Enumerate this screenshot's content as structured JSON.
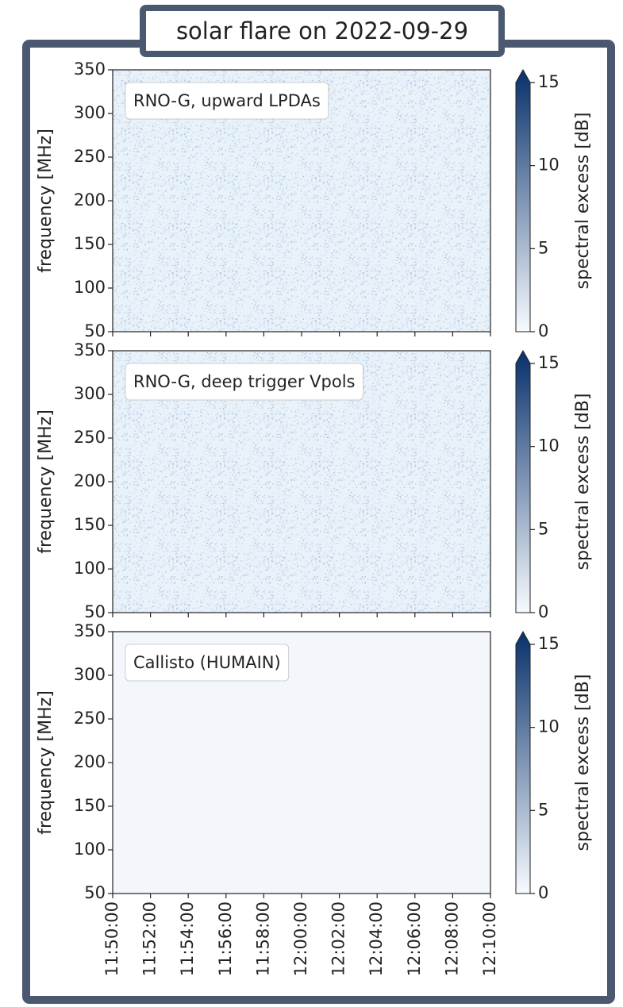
{
  "title": "solar flare on 2022-09-29",
  "colormap": [
    "#f7fbff",
    "#08306b"
  ],
  "chart_data": [
    {
      "type": "heatmap",
      "annotation": "RNO-G, upward LPDAs",
      "ylabel": "frequency [MHz]",
      "ylim": [
        50,
        350
      ],
      "yticks": [
        50,
        100,
        150,
        200,
        250,
        300,
        350
      ],
      "colorbar_label": "spectral excess [dB]",
      "colorbar_lim": [
        0,
        15
      ],
      "colorbar_ticks": [
        0,
        5,
        10,
        15
      ]
    },
    {
      "type": "heatmap",
      "annotation": "RNO-G, deep trigger Vpols",
      "ylabel": "frequency [MHz]",
      "ylim": [
        50,
        350
      ],
      "yticks": [
        50,
        100,
        150,
        200,
        250,
        300,
        350
      ],
      "colorbar_label": "spectral excess [dB]",
      "colorbar_lim": [
        0,
        15
      ],
      "colorbar_ticks": [
        0,
        5,
        10,
        15
      ]
    },
    {
      "type": "heatmap",
      "annotation": "Callisto (HUMAIN)",
      "ylabel": "frequency [MHz]",
      "ylim": [
        50,
        350
      ],
      "yticks": [
        50,
        100,
        150,
        200,
        250,
        300,
        350
      ],
      "colorbar_label": "spectral excess [dB]",
      "colorbar_lim": [
        0,
        15
      ],
      "colorbar_ticks": [
        0,
        5,
        10,
        15
      ],
      "xticks": [
        "11:50:00",
        "11:52:00",
        "11:54:00",
        "11:56:00",
        "11:58:00",
        "12:00:00",
        "12:02:00",
        "12:04:00",
        "12:06:00",
        "12:08:00",
        "12:10:00"
      ]
    }
  ]
}
